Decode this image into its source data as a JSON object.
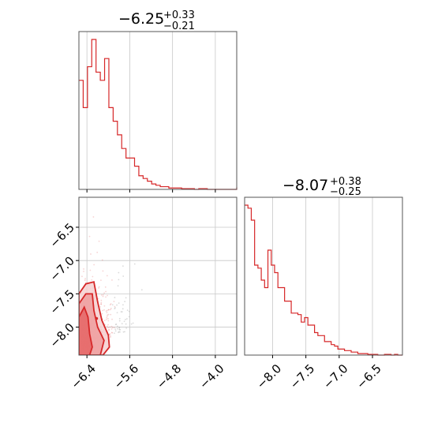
{
  "chart_data": {
    "type": "corner",
    "color": "#d62728",
    "grid": true,
    "parameters": [
      {
        "title": {
          "median": "−6.25",
          "plus": "+0.33",
          "minus": "−0.21"
        },
        "range": [
          -6.55,
          -3.6
        ],
        "ticks": [
          {
            "value": -6.4,
            "label": "−6.4"
          },
          {
            "value": -5.6,
            "label": "−5.6"
          },
          {
            "value": -4.8,
            "label": "−4.8"
          },
          {
            "value": -4.0,
            "label": "−4.0"
          }
        ],
        "histogram": {
          "bin_width": 0.08,
          "start": -6.55,
          "counts": [
            80,
            60,
            90,
            110,
            86,
            80,
            96,
            60,
            50,
            40,
            30,
            23,
            23,
            17,
            10,
            8,
            6,
            4,
            3,
            2,
            2,
            1,
            1,
            1,
            0.5,
            0.5,
            0.5,
            0,
            0.5,
            0.5,
            0,
            0,
            0,
            0,
            0,
            0,
            0,
            0,
            0,
            0,
            0,
            1.5,
            0.5,
            0,
            0,
            1,
            0,
            0,
            1,
            1,
            0.5,
            0,
            1,
            1,
            0,
            1,
            0
          ]
        }
      },
      {
        "title": {
          "median": "−8.07",
          "plus": "+0.38",
          "minus": "−0.25"
        },
        "range": [
          -8.42,
          -6.05
        ],
        "ticks": [
          {
            "value": -8.0,
            "label": "−8.0"
          },
          {
            "value": -7.5,
            "label": "−7.5"
          },
          {
            "value": -7.0,
            "label": "−7.0"
          },
          {
            "value": -6.5,
            "label": "−6.5"
          }
        ],
        "histogram": {
          "bin_width": 0.05,
          "start": -8.42,
          "counts": [
            100,
            98,
            90,
            60,
            58,
            50,
            45,
            70,
            60,
            55,
            45,
            45,
            36,
            36,
            28,
            28,
            27,
            22,
            25,
            20,
            20,
            15,
            13,
            13,
            9,
            9,
            7,
            6,
            4,
            4,
            3,
            3,
            2,
            2,
            1,
            1,
            1,
            0.5,
            0.5,
            0.5,
            0,
            0,
            0.5,
            0.5,
            0,
            0.5,
            0,
            0
          ]
        }
      }
    ],
    "scatter_2d": {
      "x_param": 0,
      "y_param": 1,
      "contour_levels": 4
    }
  }
}
